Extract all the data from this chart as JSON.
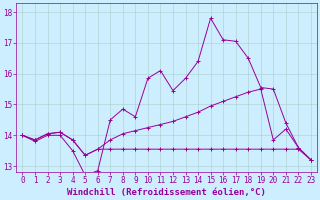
{
  "xlabel": "Windchill (Refroidissement éolien,°C)",
  "background_color": "#cceeff",
  "grid_color": "#aacccc",
  "line_color": "#990099",
  "xlim": [
    -0.5,
    23.5
  ],
  "ylim": [
    12.8,
    18.3
  ],
  "yticks": [
    13,
    14,
    15,
    16,
    17,
    18
  ],
  "xticks": [
    0,
    1,
    2,
    3,
    4,
    5,
    6,
    7,
    8,
    9,
    10,
    11,
    12,
    13,
    14,
    15,
    16,
    17,
    18,
    19,
    20,
    21,
    22,
    23
  ],
  "line1_x": [
    0,
    1,
    2,
    3,
    4,
    5,
    6,
    7,
    8,
    9,
    10,
    11,
    12,
    13,
    14,
    15,
    16,
    17,
    18,
    19,
    20,
    21,
    22,
    23
  ],
  "line1_y": [
    14.0,
    13.8,
    14.0,
    14.0,
    13.5,
    12.7,
    12.85,
    14.5,
    14.85,
    14.6,
    15.85,
    16.1,
    15.45,
    15.85,
    16.4,
    17.8,
    17.1,
    17.05,
    16.5,
    15.55,
    15.5,
    14.4,
    13.6,
    13.2
  ],
  "line2_x": [
    0,
    1,
    2,
    3,
    4,
    5,
    6,
    7,
    8,
    9,
    10,
    11,
    12,
    13,
    14,
    15,
    16,
    17,
    18,
    19,
    20,
    21,
    22,
    23
  ],
  "line2_y": [
    14.0,
    13.85,
    14.05,
    14.1,
    13.85,
    13.35,
    13.55,
    13.85,
    14.05,
    14.15,
    14.25,
    14.35,
    14.45,
    14.6,
    14.75,
    14.95,
    15.1,
    15.25,
    15.4,
    15.5,
    13.85,
    14.2,
    13.6,
    13.2
  ],
  "line3_x": [
    0,
    1,
    2,
    3,
    4,
    5,
    6,
    7,
    8,
    9,
    10,
    11,
    12,
    13,
    14,
    15,
    16,
    17,
    18,
    19,
    20,
    21,
    22,
    23
  ],
  "line3_y": [
    14.0,
    13.85,
    14.05,
    14.1,
    13.85,
    13.35,
    13.55,
    13.55,
    13.55,
    13.55,
    13.55,
    13.55,
    13.55,
    13.55,
    13.55,
    13.55,
    13.55,
    13.55,
    13.55,
    13.55,
    13.55,
    13.55,
    13.55,
    13.2
  ],
  "xlabel_fontsize": 6.5,
  "tick_fontsize": 5.5,
  "figsize": [
    3.2,
    2.0
  ],
  "dpi": 100
}
